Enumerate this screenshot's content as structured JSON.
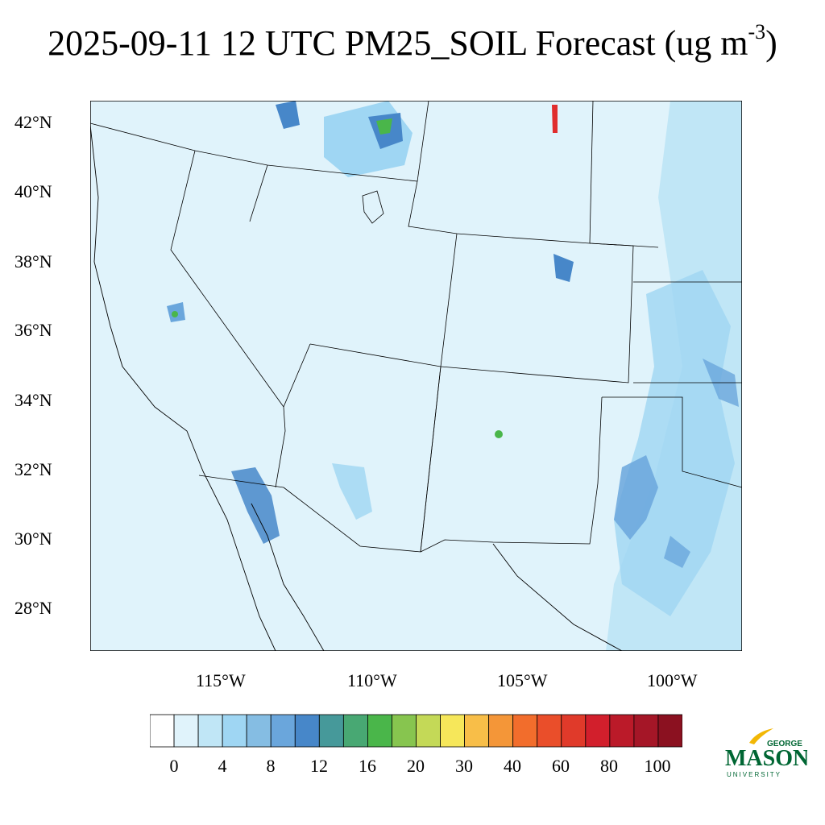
{
  "title": {
    "prefix": "2025-09-11 12 UTC PM25_SOIL Forecast (ug m",
    "superscript": "-3",
    "suffix": ")"
  },
  "map": {
    "latitude_labels": [
      "42°N",
      "40°N",
      "38°N",
      "36°N",
      "34°N",
      "32°N",
      "30°N",
      "28°N"
    ],
    "longitude_labels": [
      "115°W",
      "110°W",
      "105°W",
      "100°W"
    ],
    "background_color": "#e0f3fb",
    "colors": {
      "level1": "#e0f3fb",
      "level2": "#c0e6f6",
      "level3": "#9fd6f3",
      "level4": "#6aa6dc",
      "level5": "#4787c9",
      "green": "#4ab64a",
      "red": "#e02d2d"
    }
  },
  "colorbar": {
    "colors": [
      "#ffffff",
      "#e0f3fb",
      "#c0e6f6",
      "#9fd6f3",
      "#85bde3",
      "#6aa6dc",
      "#4787c9",
      "#46999a",
      "#48a873",
      "#4ab64a",
      "#87c54f",
      "#c4d957",
      "#f6e75a",
      "#f8be48",
      "#f49638",
      "#f26d2c",
      "#ea4e2a",
      "#e03a2a",
      "#d21f2c",
      "#bb1a29",
      "#a51627",
      "#8b1120"
    ],
    "labels": [
      "0",
      "4",
      "8",
      "12",
      "16",
      "20",
      "30",
      "40",
      "60",
      "80",
      "100"
    ]
  },
  "logo": {
    "top": "GEORGE",
    "main": "MASON",
    "bottom": "UNIVERSITY",
    "color": "#006633",
    "accent": "#f2b705"
  }
}
